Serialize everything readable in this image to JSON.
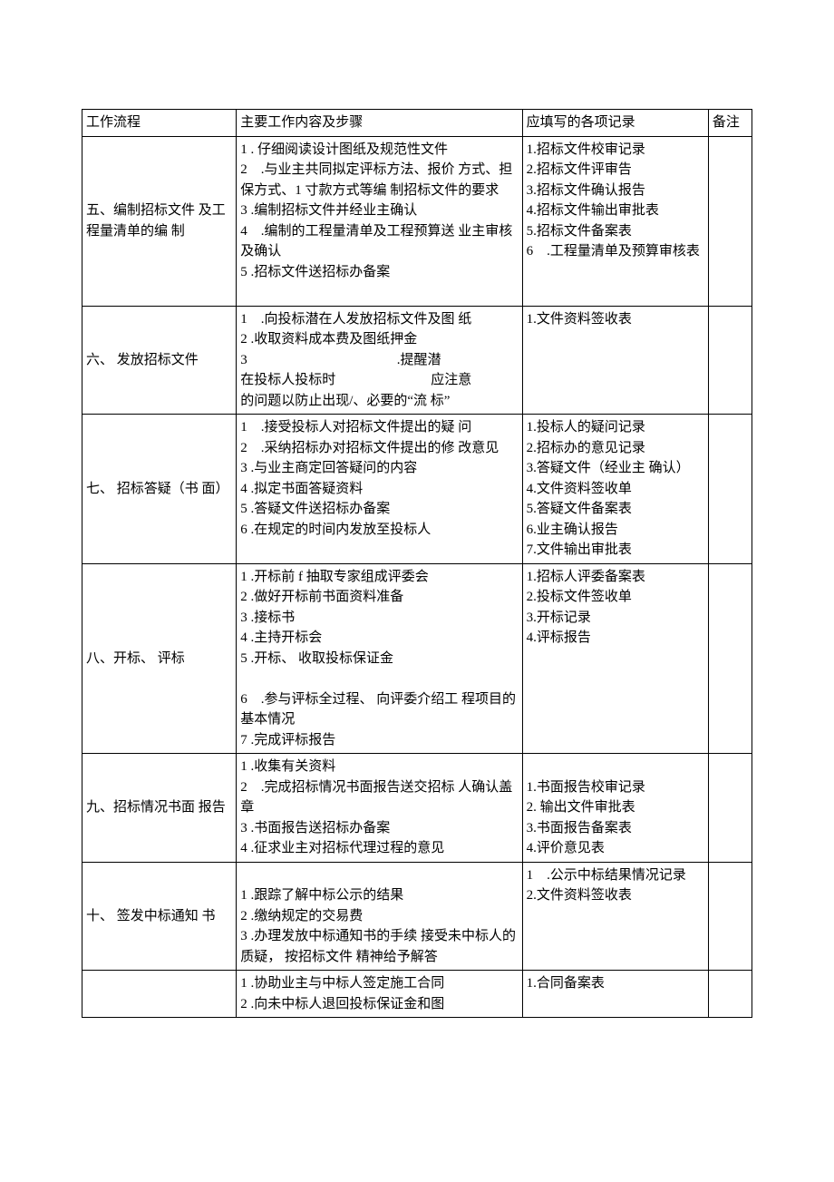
{
  "colors": {
    "bg": "#ffffff",
    "text": "#000000",
    "border": "#000000"
  },
  "columns": {
    "flow": "工作流程",
    "content": "主要工作内容及步骤",
    "records": "应填写的各项记录",
    "notes": "备注"
  },
  "rows": [
    {
      "flow": "五、编制招标文件  及工程量清单的编  制",
      "content": [
        "1 . 仔细阅读设计图纸及规范性文件",
        "2 .与业主共同拟定评标方法、报价  方式、担保方式、1 寸款方式等编  制招标文件的要求",
        "3 .编制招标文件并经业主确认",
        "4 .编制的工程量清单及工程预算送  业主审核及确认",
        "5 .招标文件送招标办备案",
        ""
      ],
      "records": [
        "1.招标文件校审记录",
        "2.招标文件评审告",
        "3.招标文件确认报告",
        "4.招标文件输出审批表",
        "5.招标文件备案表",
        "6 .工程量清单及预算审核表"
      ],
      "notes": ""
    },
    {
      "flow": "六、 发放招标文件",
      "content": [
        "1 .向投标潜在人发放招标文件及图  纸",
        "2 .收取资料成本费及图纸押金",
        "3           .提醒潜",
        "在投标人投标时       应注意",
        "的问题以防止出现/、必要的“流  标”"
      ],
      "records": [
        "1.文件资料签收表"
      ],
      "notes": ""
    },
    {
      "flow": "七、 招标答疑（书  面）",
      "content": [
        "1 .接受投标人对招标文件提出的疑  问",
        "2 .采纳招标办对招标文件提出的修  改意见",
        "3 .与业主商定回答疑问的内容",
        "4 .拟定书面答疑资料",
        "5 .答疑文件送招标办备案",
        "6 .在规定的时间内发放至投标人",
        ""
      ],
      "records": [
        "1.投标人的疑问记录",
        "2.招标办的意见记录",
        "3.答疑文件（经业主  确认）",
        "4.文件资料签收单",
        "5.答疑文件备案表",
        "6.业主确认报告",
        "7.文件输出审批表"
      ],
      "notes": ""
    },
    {
      "flow": "八、开标、 评标",
      "content": [
        "1 .开标前 f 抽取专家组成评委会",
        "2 .做好开标前书面资料准备",
        "3 .接标书",
        "4 .主持开标会",
        "5 .开标、 收取投标保证金",
        "",
        "6 .参与评标全过程、 向评委介绍工  程项目的基本情况",
        "7 .完成评标报告"
      ],
      "records": [
        "1.招标人评委备案表",
        "2.投标文件签收单",
        "3.开标记录",
        "4.评标报告"
      ],
      "notes": ""
    },
    {
      "flow": "九、招标情况书面  报告",
      "content": [
        "1 .收集有关资料",
        "2 .完成招标情况书面报告送交招标  人确认盖章",
        "3 .书面报告送招标办备案",
        "4 .征求业主对招标代理过程的意见"
      ],
      "records": [
        "",
        "1.书面报告校审记录",
        "2. 输出文件审批表",
        "3.书面报告备案表",
        "4.评价意见表"
      ],
      "notes": ""
    },
    {
      "flow": "十、 签发中标通知  书",
      "content": [
        "",
        "1 .跟踪了解中标公示的结果",
        "2 .缴纳规定的交易费",
        "3 .办理发放中标通知书的手续 接受未中标人的质疑， 按招标文件  精神给予解答"
      ],
      "records": [
        "1 .公示中标结果情况记录",
        "2.文件资料签收表"
      ],
      "notes": ""
    },
    {
      "flow": "",
      "content": [
        "1 .协助业主与中标人签定施工合同",
        "2 .向未中标人退回投标保证金和图"
      ],
      "records": [
        "1.合同备案表"
      ],
      "notes": ""
    }
  ]
}
